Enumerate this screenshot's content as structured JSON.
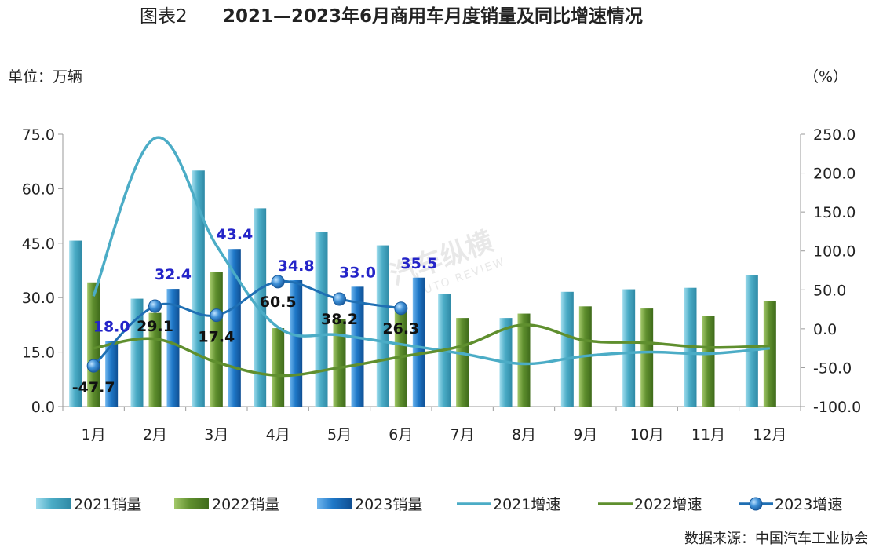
{
  "chart_data": {
    "type": "bar",
    "title_prefix": "图表2",
    "title": "2021—2023年6月商用车月度销量及同比增速情况",
    "left_unit": "单位：万辆",
    "right_unit": "（%）",
    "source": "数据来源：中国汽车工业协会",
    "categories": [
      "1月",
      "2月",
      "3月",
      "4月",
      "5月",
      "6月",
      "7月",
      "8月",
      "9月",
      "10月",
      "11月",
      "12月"
    ],
    "y_left": {
      "min": 0,
      "max": 75,
      "ticks": [
        "0.0",
        "15.0",
        "30.0",
        "45.0",
        "60.0",
        "75.0"
      ]
    },
    "y_right": {
      "min": -100,
      "max": 250,
      "ticks": [
        "-100.0",
        "-50.0",
        "0.0",
        "50.0",
        "100.0",
        "150.0",
        "200.0",
        "250.0"
      ]
    },
    "bar_series": [
      {
        "name": "2021销量",
        "color": "#4bacc6",
        "values": [
          45.7,
          29.7,
          65.0,
          54.6,
          48.2,
          44.4,
          31.0,
          24.4,
          31.6,
          32.3,
          32.7,
          36.3
        ]
      },
      {
        "name": "2022销量",
        "color": "#5f8f2e",
        "values": [
          34.2,
          25.8,
          37.0,
          21.6,
          24.2,
          26.4,
          24.4,
          25.6,
          27.6,
          27.0,
          25.0,
          29.0
        ]
      },
      {
        "name": "2023销量",
        "color": "#1f78c8",
        "values": [
          18.0,
          32.4,
          43.4,
          34.8,
          33.0,
          35.5,
          null,
          null,
          null,
          null,
          null,
          null
        ]
      }
    ],
    "line_series": [
      {
        "name": "2021增速",
        "color": "#4bacc6",
        "values": [
          42,
          245,
          107,
          2,
          -8,
          -20,
          -32,
          -45,
          -35,
          -30,
          -32,
          -25
        ]
      },
      {
        "name": "2022增速",
        "color": "#5f8f2e",
        "values": [
          -25,
          -13,
          -43,
          -60,
          -50,
          -36,
          -22,
          5,
          -15,
          -18,
          -24,
          -22
        ]
      },
      {
        "name": "2023增速",
        "color": "#1f6fb3",
        "values": [
          -47.7,
          29.1,
          17.4,
          60.5,
          38.2,
          26.3,
          null,
          null,
          null,
          null,
          null,
          null
        ]
      }
    ],
    "bar_labels_2023": [
      "18.0",
      "32.4",
      "43.4",
      "34.8",
      "33.0",
      "35.5"
    ],
    "line_labels_2023": [
      "-47.7",
      "29.1",
      "17.4",
      "60.5",
      "38.2",
      "26.3"
    ],
    "legend": [
      "2021销量",
      "2022销量",
      "2023销量",
      "2021增速",
      "2022增速",
      "2023增速"
    ],
    "watermark": {
      "main": "汽车纵横",
      "sub": "AUTO REVIEW"
    },
    "grid": false,
    "legend_position": "bottom"
  }
}
